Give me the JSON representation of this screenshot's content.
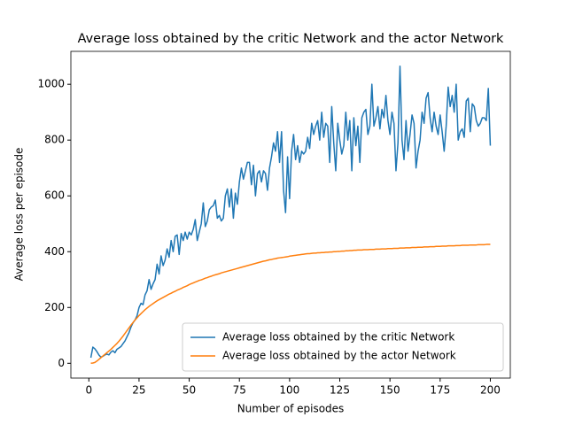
{
  "chart_data": {
    "type": "line",
    "title": "Average loss obtained by the critic Network and the actor Network",
    "x_label": "Number of episodes",
    "y_label": "Average loss per episode",
    "xlim": [
      -8.95,
      209.95
    ],
    "ylim": [
      -53,
      1118
    ],
    "xticks": [
      0,
      25,
      50,
      75,
      100,
      125,
      150,
      175,
      200
    ],
    "yticks": [
      0,
      200,
      400,
      600,
      800,
      1000
    ],
    "legend": "lower right",
    "x": [
      1,
      2,
      3,
      4,
      5,
      6,
      7,
      8,
      9,
      10,
      11,
      12,
      13,
      14,
      15,
      16,
      17,
      18,
      19,
      20,
      21,
      22,
      23,
      24,
      25,
      26,
      27,
      28,
      29,
      30,
      31,
      32,
      33,
      34,
      35,
      36,
      37,
      38,
      39,
      40,
      41,
      42,
      43,
      44,
      45,
      46,
      47,
      48,
      49,
      50,
      51,
      52,
      53,
      54,
      55,
      56,
      57,
      58,
      59,
      60,
      61,
      62,
      63,
      64,
      65,
      66,
      67,
      68,
      69,
      70,
      71,
      72,
      73,
      74,
      75,
      76,
      77,
      78,
      79,
      80,
      81,
      82,
      83,
      84,
      85,
      86,
      87,
      88,
      89,
      90,
      91,
      92,
      93,
      94,
      95,
      96,
      97,
      98,
      99,
      100,
      101,
      102,
      103,
      104,
      105,
      106,
      107,
      108,
      109,
      110,
      111,
      112,
      113,
      114,
      115,
      116,
      117,
      118,
      119,
      120,
      121,
      122,
      123,
      124,
      125,
      126,
      127,
      128,
      129,
      130,
      131,
      132,
      133,
      134,
      135,
      136,
      137,
      138,
      139,
      140,
      141,
      142,
      143,
      144,
      145,
      146,
      147,
      148,
      149,
      150,
      151,
      152,
      153,
      154,
      155,
      156,
      157,
      158,
      159,
      160,
      161,
      162,
      163,
      164,
      165,
      166,
      167,
      168,
      169,
      170,
      171,
      172,
      173,
      174,
      175,
      176,
      177,
      178,
      179,
      180,
      181,
      182,
      183,
      184,
      185,
      186,
      187,
      188,
      189,
      190,
      191,
      192,
      193,
      194,
      195,
      196,
      197,
      198,
      199,
      200
    ],
    "series": [
      {
        "name": "Average loss obtained by the critic Network",
        "color": "#1f77b4",
        "values": [
          20,
          58,
          52,
          42,
          30,
          22,
          25,
          30,
          33,
          30,
          40,
          45,
          38,
          50,
          55,
          60,
          70,
          80,
          95,
          110,
          130,
          145,
          155,
          170,
          200,
          215,
          210,
          245,
          260,
          300,
          265,
          285,
          300,
          355,
          320,
          385,
          350,
          370,
          410,
          380,
          440,
          400,
          455,
          460,
          390,
          465,
          440,
          470,
          445,
          470,
          460,
          480,
          515,
          440,
          470,
          500,
          575,
          490,
          510,
          550,
          560,
          565,
          585,
          520,
          530,
          510,
          520,
          600,
          625,
          560,
          625,
          520,
          610,
          570,
          650,
          700,
          660,
          690,
          720,
          720,
          640,
          710,
          600,
          680,
          690,
          650,
          690,
          680,
          620,
          700,
          740,
          790,
          760,
          830,
          720,
          830,
          620,
          540,
          740,
          590,
          760,
          820,
          730,
          780,
          720,
          760,
          750,
          760,
          810,
          770,
          860,
          820,
          850,
          870,
          800,
          900,
          810,
          860,
          850,
          720,
          920,
          790,
          690,
          860,
          800,
          750,
          780,
          900,
          800,
          870,
          690,
          880,
          780,
          850,
          720,
          880,
          900,
          910,
          820,
          850,
          1000,
          850,
          880,
          920,
          840,
          910,
          880,
          960,
          870,
          820,
          900,
          860,
          690,
          790,
          1065,
          800,
          730,
          870,
          760,
          820,
          890,
          860,
          700,
          760,
          800,
          900,
          860,
          950,
          970,
          880,
          830,
          900,
          850,
          820,
          890,
          830,
          760,
          850,
          990,
          920,
          960,
          900,
          1000,
          800,
          830,
          840,
          810,
          940,
          950,
          830,
          930,
          920,
          870,
          850,
          860,
          880,
          880,
          870,
          985,
          780
        ]
      },
      {
        "name": "Average loss obtained by the actor Network",
        "color": "#ff7f0e",
        "values": [
          0,
          1,
          3,
          8,
          14,
          20,
          26,
          32,
          38,
          44,
          50,
          57,
          64,
          71,
          79,
          88,
          97,
          107,
          117,
          127,
          137,
          146,
          155,
          163,
          171,
          178,
          185,
          192,
          198,
          204,
          209,
          214,
          219,
          224,
          228,
          232,
          236,
          240,
          244,
          248,
          251,
          255,
          258,
          262,
          265,
          268,
          272,
          275,
          278,
          282,
          285,
          288,
          291,
          294,
          297,
          299,
          302,
          305,
          307,
          310,
          312,
          315,
          317,
          319,
          321,
          324,
          326,
          328,
          330,
          332,
          334,
          336,
          338,
          340,
          342,
          344,
          346,
          348,
          350,
          352,
          354,
          356,
          358,
          360,
          362,
          364,
          366,
          367,
          369,
          371,
          372,
          374,
          375,
          377,
          378,
          379,
          380,
          381,
          382,
          384,
          385,
          386,
          387,
          388,
          389,
          390,
          391,
          392,
          393,
          393,
          394,
          395,
          395,
          396,
          396,
          397,
          397,
          398,
          398,
          399,
          399,
          400,
          400,
          401,
          401,
          402,
          402,
          403,
          403,
          404,
          404,
          405,
          405,
          406,
          406,
          406,
          407,
          407,
          407,
          408,
          408,
          408,
          409,
          409,
          409,
          410,
          410,
          410,
          411,
          411,
          411,
          412,
          412,
          412,
          413,
          413,
          413,
          414,
          414,
          414,
          415,
          415,
          415,
          416,
          416,
          416,
          417,
          417,
          417,
          418,
          418,
          418,
          419,
          419,
          419,
          420,
          420,
          420,
          421,
          421,
          421,
          421,
          422,
          422,
          422,
          423,
          423,
          423,
          423,
          424,
          424,
          424,
          424,
          425,
          425,
          425,
          425,
          426,
          426,
          426
        ]
      }
    ]
  }
}
